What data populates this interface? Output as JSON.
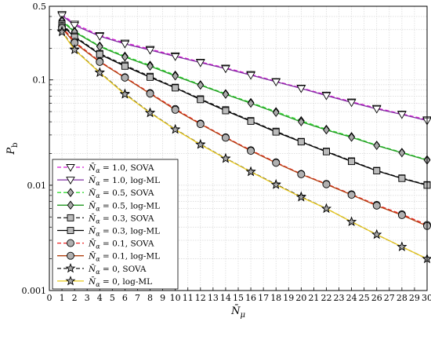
{
  "chart_data": {
    "type": "line",
    "title": "",
    "xlabel": "N̄",
    "xlabel_sub": "μ",
    "ylabel": "P",
    "ylabel_sub": "b",
    "y_scale": "log",
    "xlim": [
      0,
      30
    ],
    "ylim": [
      0.001,
      0.5
    ],
    "grid": true,
    "legend_position": "bottom-left",
    "x_ticks": [
      0,
      1,
      2,
      3,
      4,
      5,
      6,
      7,
      8,
      9,
      10,
      11,
      12,
      13,
      14,
      15,
      16,
      17,
      18,
      19,
      20,
      21,
      22,
      23,
      24,
      25,
      26,
      27,
      28,
      29,
      30
    ],
    "y_ticks": [
      {
        "value": 0.001,
        "label": "0.001"
      },
      {
        "value": 0.01,
        "label": "0.01"
      },
      {
        "value": 0.1,
        "label": "0.1"
      },
      {
        "value": 0.5,
        "label": "0.5"
      }
    ],
    "x": [
      1,
      2,
      4,
      6,
      8,
      10,
      12,
      14,
      16,
      18,
      20,
      22,
      24,
      26,
      28,
      30
    ],
    "series": [
      {
        "name": "N̄α = 1.0, SOVA",
        "color": "#d81bd8",
        "dash": "dashed",
        "marker": "triangle-down",
        "values": [
          0.42,
          0.34,
          0.265,
          0.225,
          0.196,
          0.17,
          0.148,
          0.13,
          0.113,
          0.097,
          0.084,
          0.072,
          0.062,
          0.054,
          0.0475,
          0.042
        ]
      },
      {
        "name": "N̄α = 1.0, log-ML",
        "color": "#8030a0",
        "dash": "solid",
        "marker": "triangle-down",
        "values": [
          0.41,
          0.33,
          0.26,
          0.22,
          0.192,
          0.167,
          0.146,
          0.128,
          0.111,
          0.096,
          0.083,
          0.071,
          0.061,
          0.053,
          0.047,
          0.041
        ]
      },
      {
        "name": "N̄α = 0.5, SOVA",
        "color": "#33dd33",
        "dash": "dashed",
        "marker": "diamond",
        "values": [
          0.37,
          0.29,
          0.21,
          0.168,
          0.138,
          0.111,
          0.09,
          0.074,
          0.061,
          0.05,
          0.041,
          0.034,
          0.029,
          0.024,
          0.0205,
          0.0175
        ]
      },
      {
        "name": "N̄α = 0.5, log-ML",
        "color": "#229922",
        "dash": "solid",
        "marker": "diamond",
        "values": [
          0.36,
          0.285,
          0.207,
          0.165,
          0.135,
          0.109,
          0.089,
          0.073,
          0.06,
          0.049,
          0.04,
          0.0335,
          0.0285,
          0.0238,
          0.0203,
          0.0173
        ]
      },
      {
        "name": "N̄α = 0.3, SOVA",
        "color": "#222222",
        "dash": "dashed",
        "marker": "square",
        "values": [
          0.34,
          0.26,
          0.178,
          0.138,
          0.108,
          0.085,
          0.066,
          0.052,
          0.041,
          0.0325,
          0.026,
          0.021,
          0.017,
          0.0138,
          0.0117,
          0.0101
        ]
      },
      {
        "name": "N̄α = 0.3, log-ML",
        "color": "#000000",
        "dash": "solid",
        "marker": "square",
        "values": [
          0.33,
          0.255,
          0.175,
          0.135,
          0.106,
          0.084,
          0.065,
          0.051,
          0.0405,
          0.032,
          0.0258,
          0.0208,
          0.0168,
          0.0137,
          0.0116,
          0.01
        ]
      },
      {
        "name": "N̄α = 0.1, SOVA",
        "color": "#ee2222",
        "dash": "dashed",
        "marker": "circle",
        "values": [
          0.32,
          0.23,
          0.15,
          0.106,
          0.075,
          0.053,
          0.0385,
          0.0285,
          0.0215,
          0.0165,
          0.0128,
          0.0103,
          0.0082,
          0.0065,
          0.0053,
          0.0042
        ]
      },
      {
        "name": "N̄α = 0.1, log-ML",
        "color": "#b04010",
        "dash": "solid",
        "marker": "circle",
        "values": [
          0.31,
          0.225,
          0.148,
          0.105,
          0.074,
          0.052,
          0.038,
          0.0282,
          0.0212,
          0.0163,
          0.0127,
          0.0102,
          0.0081,
          0.0064,
          0.0052,
          0.0041
        ]
      },
      {
        "name": "N̄α = 0, SOVA",
        "color": "#333333",
        "dash": "dashed",
        "marker": "star",
        "values": [
          0.29,
          0.195,
          0.118,
          0.074,
          0.049,
          0.034,
          0.0245,
          0.018,
          0.0135,
          0.0102,
          0.0078,
          0.006,
          0.0045,
          0.0034,
          0.0026,
          0.002
        ]
      },
      {
        "name": "N̄α = 0, log-ML",
        "color": "#e8c81a",
        "dash": "solid",
        "marker": "star",
        "values": [
          0.285,
          0.193,
          0.117,
          0.073,
          0.0485,
          0.0338,
          0.0243,
          0.0179,
          0.0134,
          0.0101,
          0.0077,
          0.006,
          0.0045,
          0.0034,
          0.0026,
          0.002
        ]
      }
    ],
    "legend": [
      {
        "prefix": "N̄",
        "sub": "α",
        "rest": " = 1.0, SOVA"
      },
      {
        "prefix": "N̄",
        "sub": "α",
        "rest": " = 1.0, log-ML"
      },
      {
        "prefix": "N̄",
        "sub": "α",
        "rest": " = 0.5, SOVA"
      },
      {
        "prefix": "N̄",
        "sub": "α",
        "rest": " = 0.5, log-ML"
      },
      {
        "prefix": "N̄",
        "sub": "α",
        "rest": " = 0.3, SOVA"
      },
      {
        "prefix": "N̄",
        "sub": "α",
        "rest": " = 0.3, log-ML"
      },
      {
        "prefix": "N̄",
        "sub": "α",
        "rest": " = 0.1, SOVA"
      },
      {
        "prefix": "N̄",
        "sub": "α",
        "rest": " = 0.1, log-ML"
      },
      {
        "prefix": "N̄",
        "sub": "α",
        "rest": " = 0, SOVA"
      },
      {
        "prefix": "N̄",
        "sub": "α",
        "rest": " = 0, log-ML"
      }
    ]
  }
}
